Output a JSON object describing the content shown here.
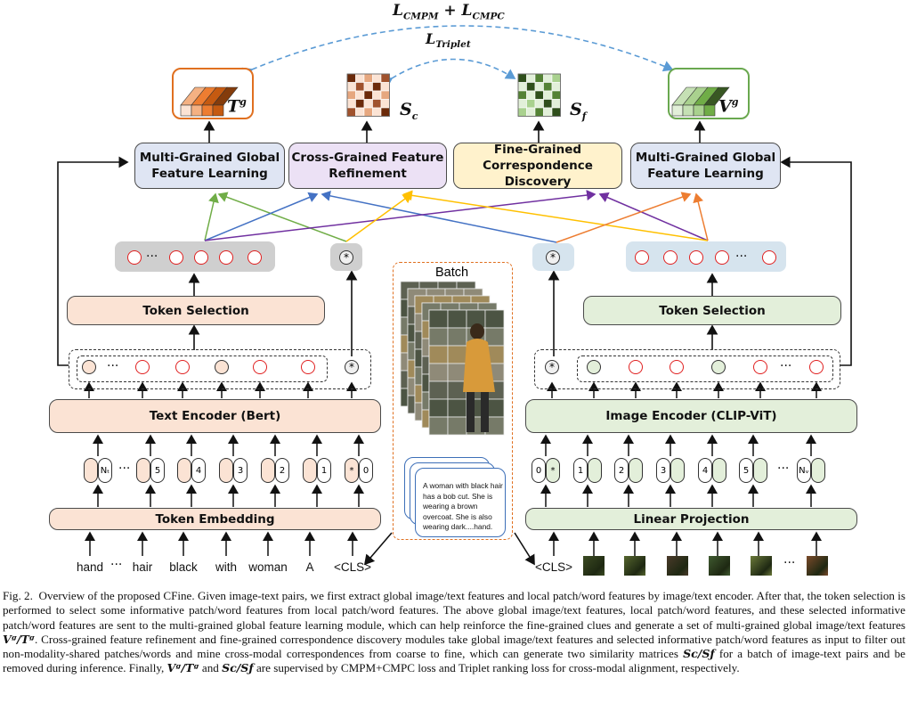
{
  "figure": {
    "losses": {
      "outer_main": "L",
      "outer_sub1": "CMPM",
      "outer_plus": " + ",
      "outer_main2": "L",
      "outer_sub2": "CMPC",
      "inner_main": "L",
      "inner_sub": "Triplet"
    },
    "outputs": {
      "text_feature": "T",
      "text_feature_sup": "g",
      "sim_coarse": "S",
      "sim_coarse_sub": "c",
      "sim_fine": "S",
      "sim_fine_sub": "f",
      "image_feature": "V",
      "image_feature_sup": "g"
    },
    "modules": {
      "mg_left": "Multi-Grained Global Feature Learning",
      "cgfr": "Cross-Grained Feature Refinement",
      "fgcd": "Fine-Grained Correspondence Discovery",
      "mg_right": "Multi-Grained Global Feature Learning",
      "token_sel_left": "Token Selection",
      "token_sel_right": "Token Selection",
      "text_encoder": "Text Encoder (Bert)",
      "image_encoder": "Image Encoder (CLIP-ViT)",
      "token_embedding": "Token Embedding",
      "linear_projection": "Linear Projection"
    },
    "symbols": {
      "ellipsis": "···",
      "star": "*"
    },
    "text_positions": [
      "Nₜ",
      "5",
      "4",
      "3",
      "2",
      "1",
      "0"
    ],
    "image_positions": [
      "0",
      "1",
      "2",
      "3",
      "4",
      "5",
      "Nᵥ"
    ],
    "text_tokens": [
      "hand",
      "···",
      "hair",
      "black",
      "with",
      "woman",
      "A",
      "<CLS>"
    ],
    "image_cls": "<CLS>",
    "batch_label": "Batch",
    "caption_sample": "A woman with black hair has a bob cut. She is wearing a brown overcoat. She is also wearing dark....hand.",
    "colors": {
      "pink": "#fbe3d4",
      "green": "#e3efda",
      "blue_module": "#dfe5f3",
      "purple_module": "#ece1f5",
      "yellow_module": "#fff2cc",
      "loss_arrow": "#5b9bd5",
      "orange_text_feature": "#e07020",
      "green_image_feature": "#6aa84f",
      "arrow_green": "#70ad47",
      "arrow_blue": "#4472c4",
      "arrow_purple": "#7030a0",
      "arrow_yellow": "#ffc000",
      "arrow_orange": "#ed7d31",
      "token_red": "#e02020"
    }
  },
  "caption": {
    "label": "Fig. 2.",
    "p1": "Overview of the proposed CFine. Given image-text pairs, we first extract global image/text features and local patch/word features by image/text encoder. After that, the token selection is performed to select some informative patch/word features from local patch/word features. The above global image/text features, local patch/word features, and these selected informative patch/word features are sent to the multi-grained global feature learning module, which can help reinforce the fine-grained clues and generate a set of multi-grained global image/text features",
    "m1": "Vᵍ/Tᵍ",
    "p2": ". Cross-grained feature refinement and fine-grained correspondence discovery modules take global image/text features and selected informative patch/word features as input to filter out non-modality-shared patches/words and mine cross-modal correspondences from coarse to fine, which can generate two similarity matrices",
    "m2": "Sᴄ/Sƒ",
    "p3": "for a batch of image-text pairs and be removed during inference. Finally,",
    "m3": "Vᵍ/Tᵍ",
    "p4": "and",
    "m4": "Sᴄ/Sƒ",
    "p5": "are supervised by CMPM+CMPC loss and Triplet ranking loss for cross-modal alignment, respectively."
  }
}
